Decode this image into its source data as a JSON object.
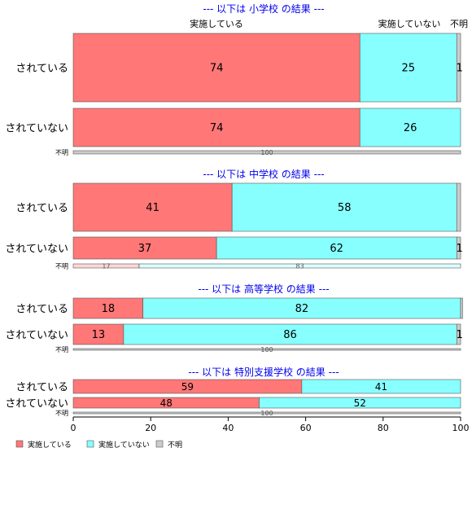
{
  "chart_data": {
    "type": "bar",
    "orientation": "horizontal",
    "stacked": true,
    "xlim": [
      0,
      100
    ],
    "x_ticks": [
      "0",
      "20",
      "40",
      "60",
      "80",
      "100"
    ],
    "legend_placement": "bottom-left",
    "series_colors": [
      "#ff7777",
      "#88ffff",
      "#cccccc"
    ],
    "top_labels": {
      "jisshi": "実施している",
      "mijisshi": "実施していない",
      "fumei": "不明"
    },
    "legend": [
      "実施している",
      "実施していない",
      "不明"
    ],
    "panels": [
      {
        "title": "--- 以下は 小学校 の結果 ---",
        "rows": [
          {
            "label": "されている",
            "values": [
              74,
              25,
              1
            ],
            "labels": [
              "74",
              "25",
              "1"
            ]
          },
          {
            "label": "されていない",
            "values": [
              74,
              26,
              0
            ],
            "labels": [
              "74",
              "26",
              ""
            ]
          },
          {
            "label": "不明",
            "values": [
              0,
              0,
              100
            ],
            "labels": [
              "",
              "",
              "100"
            ]
          }
        ]
      },
      {
        "title": "--- 以下は 中学校 の結果 ---",
        "rows": [
          {
            "label": "されている",
            "values": [
              41,
              58,
              1
            ],
            "labels": [
              "41",
              "58",
              ""
            ]
          },
          {
            "label": "されていない",
            "values": [
              37,
              62,
              1
            ],
            "labels": [
              "37",
              "62",
              "1"
            ]
          },
          {
            "label": "不明",
            "values": [
              17,
              83,
              0
            ],
            "labels": [
              "17",
              "83",
              ""
            ]
          }
        ]
      },
      {
        "title": "--- 以下は 高等学校 の結果 ---",
        "rows": [
          {
            "label": "されている",
            "values": [
              18,
              82,
              0.5
            ],
            "labels": [
              "18",
              "82",
              ""
            ]
          },
          {
            "label": "されていない",
            "values": [
              13,
              86,
              1
            ],
            "labels": [
              "13",
              "86",
              "1"
            ]
          },
          {
            "label": "不明",
            "values": [
              0,
              0,
              100
            ],
            "labels": [
              "",
              "",
              "100"
            ]
          }
        ]
      },
      {
        "title": "--- 以下は 特別支援学校 の結果 ---",
        "rows": [
          {
            "label": "されている",
            "values": [
              59,
              41,
              0
            ],
            "labels": [
              "59",
              "41",
              ""
            ]
          },
          {
            "label": "されていない",
            "values": [
              48,
              52,
              0
            ],
            "labels": [
              "48",
              "52",
              ""
            ]
          },
          {
            "label": "不明",
            "values": [
              0,
              0,
              100
            ],
            "labels": [
              "",
              "",
              "100"
            ]
          }
        ]
      }
    ]
  }
}
